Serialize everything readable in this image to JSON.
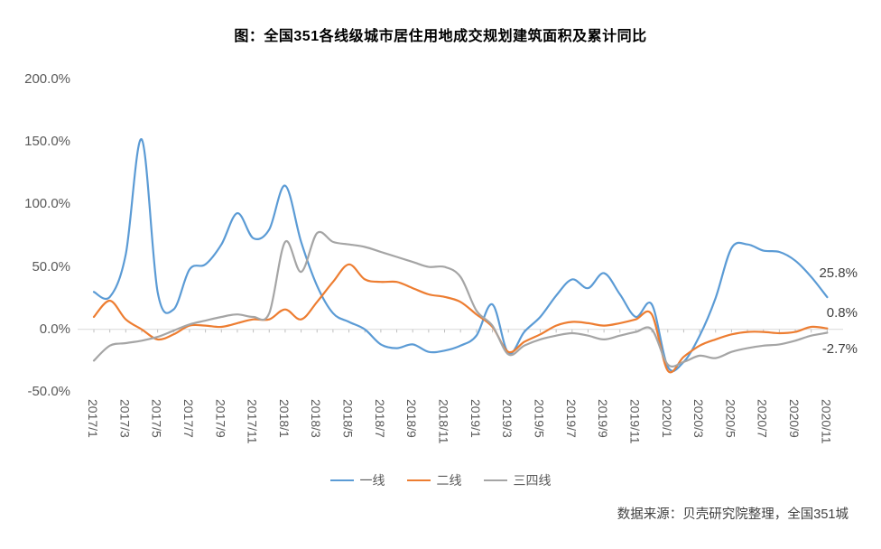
{
  "title": "图：全国351各线级城市居住用地成交规划建筑面积及累计同比",
  "source": "数据来源：贝壳研究院整理，全国351城",
  "end_labels": {
    "tier1": "25.8%",
    "tier2": "0.8%",
    "tier34": "-2.7%"
  },
  "chart_data": {
    "type": "line",
    "title": "图：全国351各线级城市居住用地成交规划建筑面积及累计同比",
    "x": [
      "2017/1",
      "2017/2",
      "2017/3",
      "2017/4",
      "2017/5",
      "2017/6",
      "2017/7",
      "2017/8",
      "2017/9",
      "2017/10",
      "2017/11",
      "2017/12",
      "2018/1",
      "2018/2",
      "2018/3",
      "2018/4",
      "2018/5",
      "2018/6",
      "2018/7",
      "2018/8",
      "2018/9",
      "2018/10",
      "2018/11",
      "2018/12",
      "2019/1",
      "2019/2",
      "2019/3",
      "2019/4",
      "2019/5",
      "2019/6",
      "2019/7",
      "2019/8",
      "2019/9",
      "2019/10",
      "2019/11",
      "2019/12",
      "2020/1",
      "2020/2",
      "2020/3",
      "2020/4",
      "2020/5",
      "2020/6",
      "2020/7",
      "2020/8",
      "2020/9",
      "2020/10",
      "2020/11"
    ],
    "x_tick_labels": [
      "2017/1",
      "2017/3",
      "2017/5",
      "2017/7",
      "2017/9",
      "2017/11",
      "2018/1",
      "2018/3",
      "2018/5",
      "2018/7",
      "2018/9",
      "2018/11",
      "2019/1",
      "2019/3",
      "2019/5",
      "2019/7",
      "2019/9",
      "2019/11",
      "2020/1",
      "2020/3",
      "2020/5",
      "2020/7",
      "2020/9",
      "2020/11"
    ],
    "ylim": [
      -50,
      200
    ],
    "yticks": [
      "200.0%",
      "150.0%",
      "100.0%",
      "50.0%",
      "0.0%",
      "-50.0%"
    ],
    "grid": "zero-axis-only",
    "legend_position": "bottom",
    "series": [
      {
        "name": "一线",
        "color": "#5B9BD5",
        "values": [
          30,
          26,
          60,
          152,
          30,
          16,
          48,
          52,
          68,
          93,
          73,
          80,
          115,
          70,
          35,
          13,
          6,
          0,
          -12,
          -15,
          -12,
          -18,
          -17,
          -13,
          -5,
          20,
          -19,
          -2,
          10,
          27,
          40,
          33,
          45,
          28,
          10,
          20,
          -30,
          -26,
          -5,
          25,
          65,
          68,
          63,
          62,
          55,
          42,
          25.8
        ]
      },
      {
        "name": "二线",
        "color": "#ED7D31",
        "values": [
          10,
          23,
          8,
          0,
          -8,
          -4,
          3,
          3,
          2,
          5,
          8,
          8,
          16,
          8,
          22,
          38,
          52,
          40,
          38,
          38,
          33,
          28,
          26,
          22,
          12,
          2,
          -18,
          -10,
          -4,
          3,
          6,
          5,
          3,
          5,
          8,
          12,
          -33,
          -22,
          -13,
          -8,
          -4,
          -2,
          -2,
          -3,
          -2,
          2,
          0.8
        ]
      },
      {
        "name": "三四线",
        "color": "#A5A5A5",
        "values": [
          -25,
          -13,
          -11,
          -9,
          -6,
          -1,
          4,
          7,
          10,
          12,
          10,
          13,
          70,
          46,
          77,
          70,
          68,
          66,
          62,
          58,
          54,
          50,
          50,
          42,
          15,
          3,
          -20,
          -13,
          -8,
          -5,
          -3,
          -5,
          -8,
          -5,
          -2,
          0,
          -28,
          -26,
          -21,
          -23,
          -18,
          -15,
          -13,
          -12,
          -9,
          -5,
          -2.7
        ]
      }
    ]
  }
}
